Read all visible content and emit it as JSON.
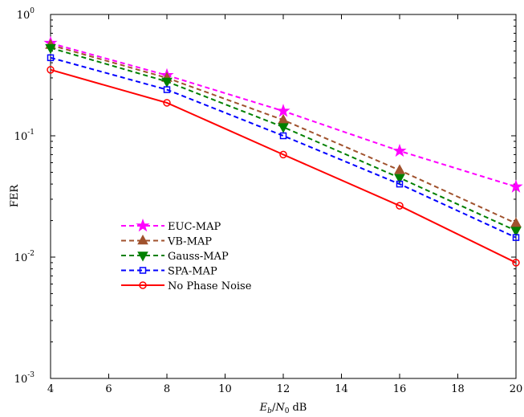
{
  "chart_data": {
    "type": "line",
    "title": "",
    "xlabel": "Eb/N0 dB",
    "xlabel_parts": {
      "E": "E",
      "b": "b",
      "N": "N",
      "zero": "0",
      "unit": "dB"
    },
    "ylabel": "FER",
    "y_scale": "log",
    "xlim": [
      4,
      20
    ],
    "ylim": [
      0.001,
      1
    ],
    "grid": false,
    "legend_position": "center-left",
    "x_ticks": [
      4,
      6,
      8,
      10,
      12,
      14,
      16,
      18,
      20
    ],
    "x_tick_labels": [
      "4",
      "6",
      "8",
      "10",
      "12",
      "14",
      "16",
      "18",
      "20"
    ],
    "y_ticks": [
      {
        "value": 1,
        "base": "10",
        "exp": "0"
      },
      {
        "value": 0.1,
        "base": "10",
        "exp": "-1"
      },
      {
        "value": 0.01,
        "base": "10",
        "exp": "-2"
      },
      {
        "value": 0.001,
        "base": "10",
        "exp": "-3"
      }
    ],
    "x": [
      4,
      8,
      12,
      16,
      20
    ],
    "series": [
      {
        "name": "EUC-MAP",
        "values": [
          0.58,
          0.315,
          0.16,
          0.075,
          0.038
        ],
        "color": "#ff00ff",
        "dash": "dashed",
        "marker": "star"
      },
      {
        "name": "VB-MAP",
        "values": [
          0.56,
          0.3,
          0.135,
          0.052,
          0.019
        ],
        "color": "#a0522d",
        "dash": "dashed",
        "marker": "triangle-up"
      },
      {
        "name": "Gauss-MAP",
        "values": [
          0.53,
          0.28,
          0.118,
          0.045,
          0.0165
        ],
        "color": "#008000",
        "dash": "dashed",
        "marker": "triangle-down"
      },
      {
        "name": "SPA-MAP",
        "values": [
          0.44,
          0.24,
          0.1,
          0.04,
          0.0145
        ],
        "color": "#0000ff",
        "dash": "dashed",
        "marker": "square"
      },
      {
        "name": "No Phase Noise",
        "values": [
          0.35,
          0.187,
          0.07,
          0.0265,
          0.009
        ],
        "color": "#ff0000",
        "dash": "solid",
        "marker": "circle"
      }
    ]
  }
}
